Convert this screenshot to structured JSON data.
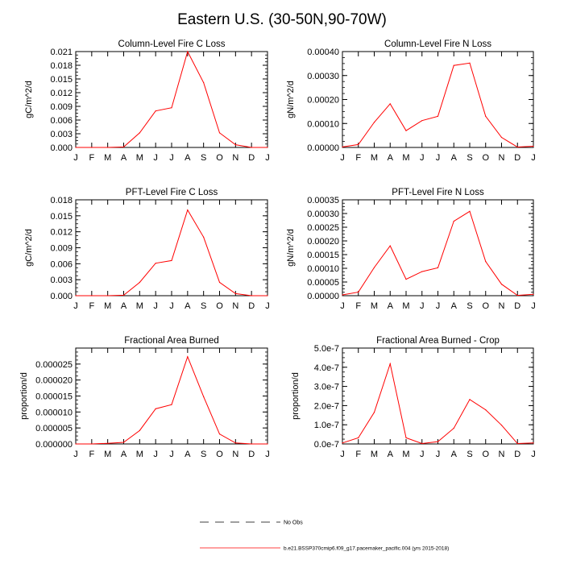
{
  "figure": {
    "title": "Eastern U.S. (30-50N,90-70W)"
  },
  "months": [
    "J",
    "F",
    "M",
    "A",
    "M",
    "J",
    "J",
    "A",
    "S",
    "O",
    "N",
    "D",
    "J"
  ],
  "chart_data": [
    {
      "type": "line",
      "title": "Column-Level Fire C Loss",
      "ylabel": "gC/m^2/d",
      "ylim": [
        0,
        0.021
      ],
      "yticks": [
        "0.000",
        "0.003",
        "0.006",
        "0.009",
        "0.012",
        "0.015",
        "0.018",
        "0.021"
      ],
      "series": [
        {
          "values": [
            0,
            0,
            0,
            0.0001,
            0.0032,
            0.008,
            0.0087,
            0.021,
            0.0142,
            0.0032,
            0.0006,
            0,
            0
          ]
        }
      ]
    },
    {
      "type": "line",
      "title": "Column-Level Fire N Loss",
      "ylabel": "gN/m^2/d",
      "ylim": [
        0,
        0.0004
      ],
      "yticks": [
        "0.00000",
        "0.00010",
        "0.00020",
        "0.00030",
        "0.00040"
      ],
      "series": [
        {
          "values": [
            2e-06,
            1.2e-05,
            0.000105,
            0.000182,
            7e-05,
            0.000112,
            0.00013,
            0.000342,
            0.000352,
            0.00013,
            4.2e-05,
            1.5e-06,
            5e-06
          ]
        }
      ]
    },
    {
      "type": "line",
      "title": "PFT-Level Fire C Loss",
      "ylabel": "gC/m^2/d",
      "ylim": [
        0,
        0.018
      ],
      "yticks": [
        "0.000",
        "0.003",
        "0.006",
        "0.009",
        "0.012",
        "0.015",
        "0.018"
      ],
      "series": [
        {
          "values": [
            0,
            0,
            0,
            0.0001,
            0.0025,
            0.0061,
            0.0066,
            0.0161,
            0.011,
            0.0025,
            0.0004,
            0,
            0
          ]
        }
      ]
    },
    {
      "type": "line",
      "title": "PFT-Level Fire N Loss",
      "ylabel": "gN/m^2/d",
      "ylim": [
        0,
        0.00035
      ],
      "yticks": [
        "0.00000",
        "0.00005",
        "0.00010",
        "0.00015",
        "0.00020",
        "0.00025",
        "0.00030",
        "0.00035"
      ],
      "series": [
        {
          "values": [
            3e-06,
            1.3e-05,
            0.000103,
            0.000182,
            6e-05,
            8.8e-05,
            0.000102,
            0.000272,
            0.000308,
            0.000125,
            4.2e-05,
            1e-06,
            5e-06
          ]
        }
      ]
    },
    {
      "type": "line",
      "title": "Fractional Area Burned",
      "ylabel": "proportion/d",
      "ylim": [
        0,
        3e-05
      ],
      "yticks": [
        "0.000000",
        "0.000005",
        "0.000010",
        "0.000015",
        "0.000020",
        "0.000025"
      ],
      "series": [
        {
          "values": [
            0,
            0,
            2e-07,
            5e-07,
            4.2e-06,
            1.1e-05,
            1.23e-05,
            2.73e-05,
            1.48e-05,
            3.1e-06,
            3e-07,
            0,
            0
          ]
        }
      ]
    },
    {
      "type": "line",
      "title": "Fractional Area Burned - Crop",
      "ylabel": "proportion/d",
      "ylim": [
        0,
        5e-07
      ],
      "yticks": [
        "0.0e-7",
        "1.0e-7",
        "2.0e-7",
        "3.0e-7",
        "4.0e-7",
        "5.0e-7"
      ],
      "series": [
        {
          "values": [
            5e-09,
            3.2e-08,
            1.65e-07,
            4.18e-07,
            3.2e-08,
            2e-09,
            1.2e-08,
            8.2e-08,
            2.32e-07,
            1.78e-07,
            9.8e-08,
            2e-09,
            5e-09
          ]
        }
      ]
    }
  ],
  "legend": [
    {
      "label": "No Obs",
      "style": "dashed",
      "color": "#000000"
    },
    {
      "label": "b.e21.BSSP370cmip6.f09_g17.pacemaker_pacific.004 (yrs 2015-2018)",
      "style": "solid",
      "color": "#ff0000"
    }
  ],
  "colors": {
    "series": "#ff0000",
    "axes": "#000000",
    "background": "#ffffff"
  }
}
